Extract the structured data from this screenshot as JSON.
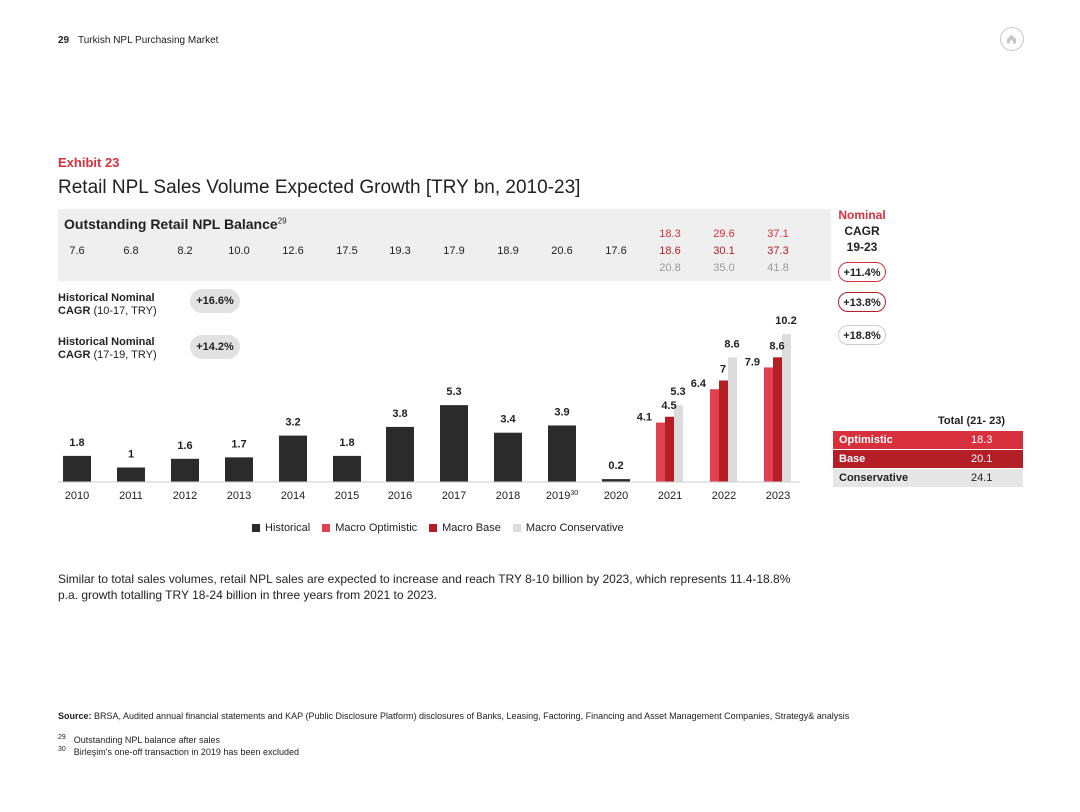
{
  "page": {
    "number": "29",
    "header": "Turkish NPL Purchasing Market"
  },
  "exhibit": "Exhibit 23",
  "title": "Retail NPL Sales Volume Expected Growth [TRY bn, 2010-23]",
  "balance": {
    "title": "Outstanding Retail NPL Balance",
    "title_sup": "29",
    "historical": [
      "7.6",
      "6.8",
      "8.2",
      "10.0",
      "12.6",
      "17.5",
      "19.3",
      "17.9",
      "18.9",
      "20.6",
      "17.6"
    ],
    "forecast_optimistic": [
      "18.3",
      "29.6",
      "37.1"
    ],
    "forecast_base": [
      "18.6",
      "30.1",
      "37.3"
    ],
    "forecast_conservative": [
      "20.8",
      "35.0",
      "41.8"
    ]
  },
  "cagr_header": {
    "line1": "Nominal",
    "line2": "CAGR",
    "line3": "19-23"
  },
  "cagr_pills": {
    "optimistic": "+11.4%",
    "base": "+13.8%",
    "conservative": "+18.8%"
  },
  "historical_cagr": [
    {
      "bold": "Historical Nominal",
      "line2_bold": "CAGR",
      "line2": " (10-17, TRY)",
      "value": "+16.6%"
    },
    {
      "bold": "Historical Nominal",
      "line2_bold": "CAGR",
      "line2": " (17-19, TRY)",
      "value": "+14.2%"
    }
  ],
  "chart_data": {
    "type": "bar",
    "categories": [
      "2010",
      "2011",
      "2012",
      "2013",
      "2014",
      "2015",
      "2016",
      "2017",
      "2018",
      "2019",
      "2020",
      "2021",
      "2022",
      "2023"
    ],
    "category_superscripts": {
      "2019": "30"
    },
    "historical": [
      1.8,
      1.0,
      1.6,
      1.7,
      3.2,
      1.8,
      3.8,
      5.3,
      3.4,
      3.9,
      0.2
    ],
    "series": [
      {
        "name": "Historical",
        "values": [
          1.8,
          1.0,
          1.6,
          1.7,
          3.2,
          1.8,
          3.8,
          5.3,
          3.4,
          3.9,
          0.2,
          null,
          null,
          null
        ]
      },
      {
        "name": "Macro Optimistic",
        "values": [
          null,
          null,
          null,
          null,
          null,
          null,
          null,
          null,
          null,
          null,
          null,
          4.1,
          6.4,
          7.9
        ]
      },
      {
        "name": "Macro Base",
        "values": [
          null,
          null,
          null,
          null,
          null,
          null,
          null,
          null,
          null,
          null,
          null,
          4.5,
          7.0,
          8.6
        ]
      },
      {
        "name": "Macro Conservative",
        "values": [
          null,
          null,
          null,
          null,
          null,
          null,
          null,
          null,
          null,
          null,
          null,
          5.3,
          8.6,
          10.2
        ]
      }
    ],
    "ylim": [
      0,
      10.2
    ],
    "colors": {
      "historical": "#2b2b2b",
      "optimistic": "#e04050",
      "base": "#b31e27",
      "conservative": "#dcdcdc"
    }
  },
  "legend": [
    "Historical",
    "Macro Optimistic",
    "Macro Base",
    "Macro Conservative"
  ],
  "total_table": {
    "header": "Total (21- 23)",
    "rows": [
      {
        "label": "Optimistic",
        "value": "18.3",
        "bg": "#d9303e",
        "fg": "#ffffff"
      },
      {
        "label": "Base",
        "value": "20.1",
        "bg": "#b31e27",
        "fg": "#ffffff"
      },
      {
        "label": "Conservative",
        "value": "24.1",
        "bg": "#e6e6e6",
        "fg": "#222222"
      }
    ]
  },
  "body_text": "Similar to total sales volumes, retail NPL sales are expected to increase and reach TRY 8-10 billion by 2023, which represents 11.4-18.8% p.a. growth totalling TRY 18-24 billion in three years from 2021 to 2023.",
  "source": {
    "label": "Source:",
    "text": " BRSA, Audited annual financial statements and KAP (Public Disclosure Platform) disclosures of Banks, Leasing, Factoring, Financing and Asset Management Companies, Strategy& analysis"
  },
  "footnotes": [
    {
      "num": "29",
      "text": "Outstanding NPL balance after sales"
    },
    {
      "num": "30",
      "text": "Birleşim's one-off transaction in 2019 has been excluded"
    }
  ]
}
